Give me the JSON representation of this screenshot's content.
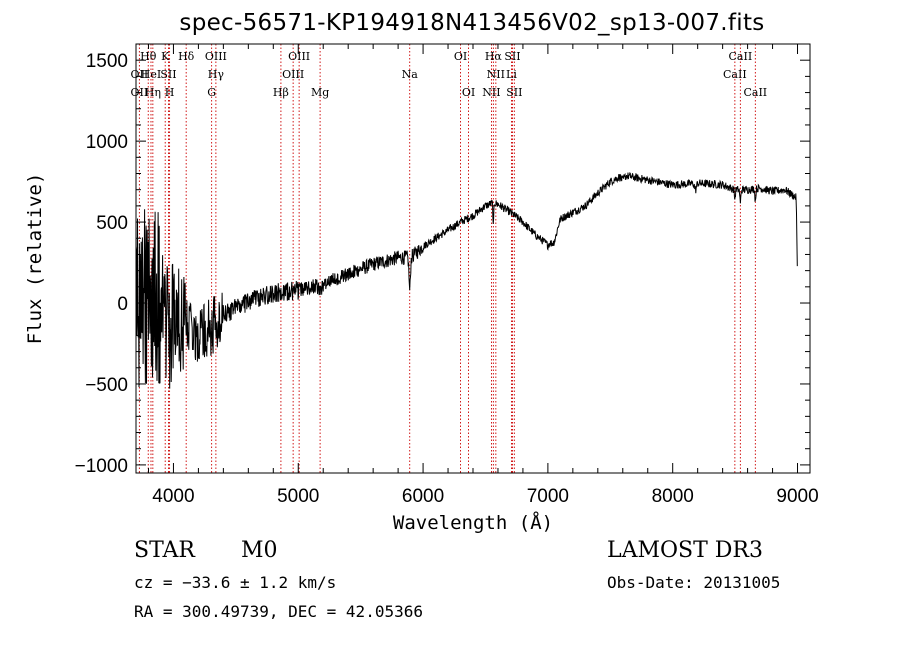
{
  "chart_data": {
    "type": "line",
    "title": "spec-56571-KP194918N413456V02_sp13-007.fits",
    "xlabel": "Wavelength (Å)",
    "ylabel": "Flux (relative)",
    "xlim": [
      3700,
      9100
    ],
    "ylim": [
      -1050,
      1600
    ],
    "xticks": [
      4000,
      5000,
      6000,
      7000,
      8000,
      9000
    ],
    "xtick_labels": [
      "4000",
      "5000",
      "6000",
      "7000",
      "8000",
      "9000"
    ],
    "yticks": [
      -1000,
      -500,
      0,
      500,
      1000,
      1500
    ],
    "ytick_labels": [
      "−1000",
      "−500",
      "0",
      "500",
      "1000",
      "1500"
    ],
    "spectrum_trend": {
      "x": [
        3700,
        3800,
        3900,
        4000,
        4100,
        4200,
        4300,
        4400,
        4500,
        4600,
        4700,
        4800,
        4900,
        5000,
        5200,
        5400,
        5600,
        5800,
        5900,
        6000,
        6200,
        6300,
        6400,
        6500,
        6563,
        6600,
        6700,
        6800,
        6900,
        7000,
        7100,
        7200,
        7300,
        7400,
        7500,
        7600,
        7800,
        8000,
        8200,
        8400,
        8500,
        8600,
        8700,
        8800,
        8900,
        8990,
        9000
      ],
      "y": [
        0,
        50,
        0,
        -100,
        -150,
        -200,
        -130,
        -80,
        -30,
        10,
        40,
        60,
        70,
        80,
        120,
        180,
        240,
        280,
        280,
        350,
        450,
        500,
        540,
        600,
        620,
        610,
        560,
        500,
        420,
        360,
        520,
        560,
        600,
        680,
        750,
        790,
        760,
        730,
        740,
        730,
        700,
        700,
        710,
        690,
        700,
        650,
        100
      ]
    },
    "spectral_lines": [
      {
        "label": "OII",
        "wave": 3727,
        "row": 1
      },
      {
        "label": "OII",
        "wave": 3727,
        "row": 2
      },
      {
        "label": "Hθ",
        "wave": 3798,
        "row": 0
      },
      {
        "label": "HeI",
        "wave": 3820,
        "row": 1
      },
      {
        "label": "Hη",
        "wave": 3835,
        "row": 2
      },
      {
        "label": "K",
        "wave": 3934,
        "row": 0
      },
      {
        "label": "SII",
        "wave": 3960,
        "row": 1
      },
      {
        "label": "H",
        "wave": 3969,
        "row": 2
      },
      {
        "label": "Hδ",
        "wave": 4102,
        "row": 0
      },
      {
        "label": "OIII",
        "wave": 4340,
        "row": 0
      },
      {
        "label": "Hγ",
        "wave": 4340,
        "row": 1
      },
      {
        "label": "G",
        "wave": 4306,
        "row": 2
      },
      {
        "label": "Hβ",
        "wave": 4861,
        "row": 2
      },
      {
        "label": "OIII",
        "wave": 5007,
        "row": 0
      },
      {
        "label": "OIII",
        "wave": 4959,
        "row": 1
      },
      {
        "label": "Mg",
        "wave": 5175,
        "row": 2
      },
      {
        "label": "Na",
        "wave": 5893,
        "row": 1
      },
      {
        "label": "OI",
        "wave": 6300,
        "row": 0
      },
      {
        "label": "OI",
        "wave": 6364,
        "row": 2
      },
      {
        "label": "Hα",
        "wave": 6563,
        "row": 0
      },
      {
        "label": "SII",
        "wave": 6716,
        "row": 0
      },
      {
        "label": "NII",
        "wave": 6583,
        "row": 1
      },
      {
        "label": "Li",
        "wave": 6708,
        "row": 1
      },
      {
        "label": "NII",
        "wave": 6548,
        "row": 2
      },
      {
        "label": "SII",
        "wave": 6731,
        "row": 2
      },
      {
        "label": "CaII",
        "wave": 8542,
        "row": 0
      },
      {
        "label": "CaII",
        "wave": 8498,
        "row": 1
      },
      {
        "label": "CaII",
        "wave": 8662,
        "row": 2
      }
    ],
    "line_color": "#cc0000",
    "spectrum_color": "#000000"
  },
  "info": {
    "object_class": "STAR",
    "subclass": "M0",
    "survey": "LAMOST DR3",
    "redshift": "cz = −33.6 ± 1.2 km/s",
    "obs_date": "Obs-Date: 20131005",
    "coords": "RA = 300.49739, DEC =  42.05366"
  }
}
